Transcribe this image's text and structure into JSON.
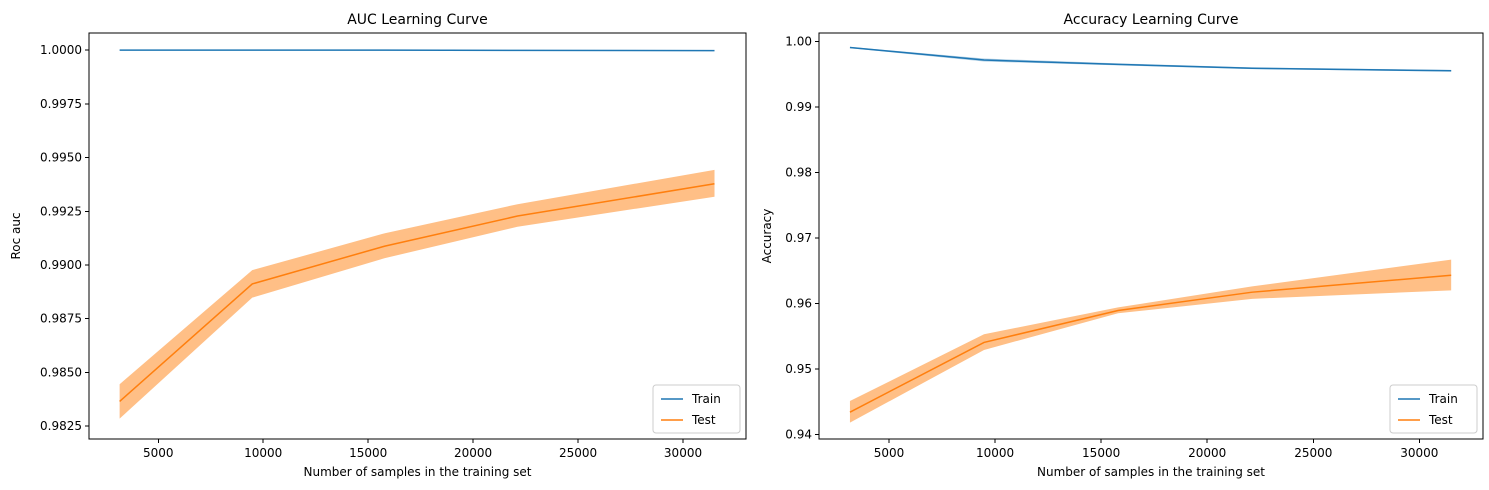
{
  "chart_data": [
    {
      "type": "line",
      "title": "AUC Learning Curve",
      "xlabel": "Number of samples in the training set",
      "ylabel": "Roc auc",
      "xlim": [
        1700,
        33000
      ],
      "ylim": [
        0.9819,
        1.0008
      ],
      "xticks": [
        5000,
        10000,
        15000,
        20000,
        25000,
        30000
      ],
      "xtick_labels": [
        "5000",
        "10000",
        "15000",
        "20000",
        "25000",
        "30000"
      ],
      "yticks": [
        0.9825,
        0.985,
        0.9875,
        0.99,
        0.9925,
        0.995,
        0.9975,
        1.0
      ],
      "ytick_labels": [
        "0.9825",
        "0.9850",
        "0.9875",
        "0.9900",
        "0.9925",
        "0.9950",
        "0.9975",
        "1.0000"
      ],
      "grid": false,
      "legend": "lower-right",
      "x": [
        3159,
        9478,
        15797,
        22116,
        31500
      ],
      "series": [
        {
          "name": "Train",
          "color": "#1f77b4",
          "band_color": "#1f77b4",
          "values": [
            1.0,
            1.0,
            1.0,
            0.99999,
            0.99998
          ],
          "lower": [
            0.99999,
            0.99999,
            0.99998,
            0.99997,
            0.99996
          ],
          "upper": [
            1.0,
            1.0,
            1.0,
            1.0,
            0.99999
          ]
        },
        {
          "name": "Test",
          "color": "#ff7f0e",
          "band_color": "#ffbf86",
          "values": [
            0.98365,
            0.98912,
            0.99088,
            0.99228,
            0.99378
          ],
          "lower": [
            0.98285,
            0.98848,
            0.99032,
            0.99178,
            0.99318
          ],
          "upper": [
            0.98445,
            0.98976,
            0.99148,
            0.99283,
            0.99443
          ]
        }
      ]
    },
    {
      "type": "line",
      "title": "Accuracy Learning Curve",
      "xlabel": "Number of samples in the training set",
      "ylabel": "Accuracy",
      "xlim": [
        1700,
        33000
      ],
      "ylim": [
        0.9393,
        1.0013
      ],
      "xticks": [
        5000,
        10000,
        15000,
        20000,
        25000,
        30000
      ],
      "xtick_labels": [
        "5000",
        "10000",
        "15000",
        "20000",
        "25000",
        "30000"
      ],
      "yticks": [
        0.94,
        0.95,
        0.96,
        0.97,
        0.98,
        0.99,
        1.0
      ],
      "ytick_labels": [
        "0.94",
        "0.95",
        "0.96",
        "0.97",
        "0.98",
        "0.99",
        "1.00"
      ],
      "grid": false,
      "legend": "lower-right",
      "x": [
        3159,
        9478,
        15797,
        22116,
        31500
      ],
      "series": [
        {
          "name": "Train",
          "color": "#1f77b4",
          "band_color": "#1f77b4",
          "values": [
            0.99908,
            0.99717,
            0.99651,
            0.99592,
            0.99553
          ],
          "lower": [
            0.99898,
            0.99695,
            0.99635,
            0.99579,
            0.9954
          ],
          "upper": [
            0.99918,
            0.9974,
            0.99667,
            0.99605,
            0.99566
          ]
        },
        {
          "name": "Test",
          "color": "#ff7f0e",
          "band_color": "#ffbf86",
          "values": [
            0.9434,
            0.95405,
            0.95892,
            0.96172,
            0.9643
          ],
          "lower": [
            0.9418,
            0.9529,
            0.9585,
            0.9607,
            0.962
          ],
          "upper": [
            0.9451,
            0.9553,
            0.9594,
            0.9626,
            0.9667
          ]
        }
      ]
    }
  ]
}
